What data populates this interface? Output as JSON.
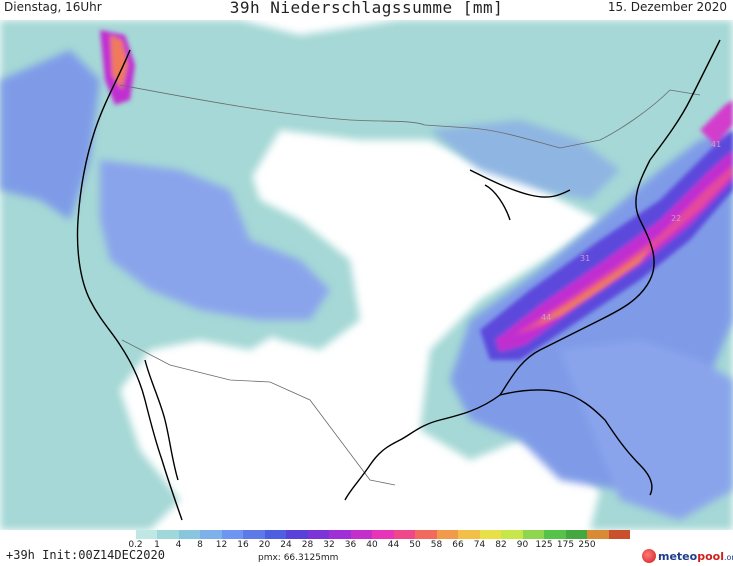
{
  "header": {
    "left": "Dienstag, 16Uhr",
    "title": "39h Niederschlagssumme [mm]",
    "right": "15. Dezember 2020"
  },
  "footer": {
    "init": "+39h Init:00Z14DEC2020",
    "pmx": "pmx: 66.3125mm",
    "logo_main": "meteo",
    "logo_accent": "pool",
    "logo_suffix": ".org"
  },
  "legend": {
    "ticks": [
      "0.2",
      "1",
      "4",
      "8",
      "12",
      "16",
      "20",
      "24",
      "28",
      "32",
      "36",
      "40",
      "44",
      "50",
      "58",
      "66",
      "74",
      "82",
      "90",
      "125",
      "175",
      "250"
    ],
    "colors": [
      "#ffffff",
      "#bfe8e5",
      "#9ed8d8",
      "#88c6dd",
      "#7eb0ea",
      "#6f95f2",
      "#5d7ae8",
      "#4d5fe0",
      "#5840d8",
      "#7a34d8",
      "#9f2fd6",
      "#c42fcb",
      "#e834b6",
      "#f0478a",
      "#f26a5e",
      "#f29a4c",
      "#f2c046",
      "#e8e046",
      "#c6e64a",
      "#8fd64e",
      "#56c24a",
      "#43a840",
      "#d98a32",
      "#c9502a"
    ]
  },
  "labels": {
    "station_a": "41",
    "station_b": "22",
    "station_c": "31",
    "station_d": "44"
  },
  "colors": {
    "land": "#ffffff",
    "light_precip": "#a5d8d6",
    "medium_precip": "#7f9be8",
    "heavy_precip": "#c12fd0",
    "extreme_precip": "#f07e48",
    "border": "#6a6a6a",
    "coast": "#000000"
  }
}
